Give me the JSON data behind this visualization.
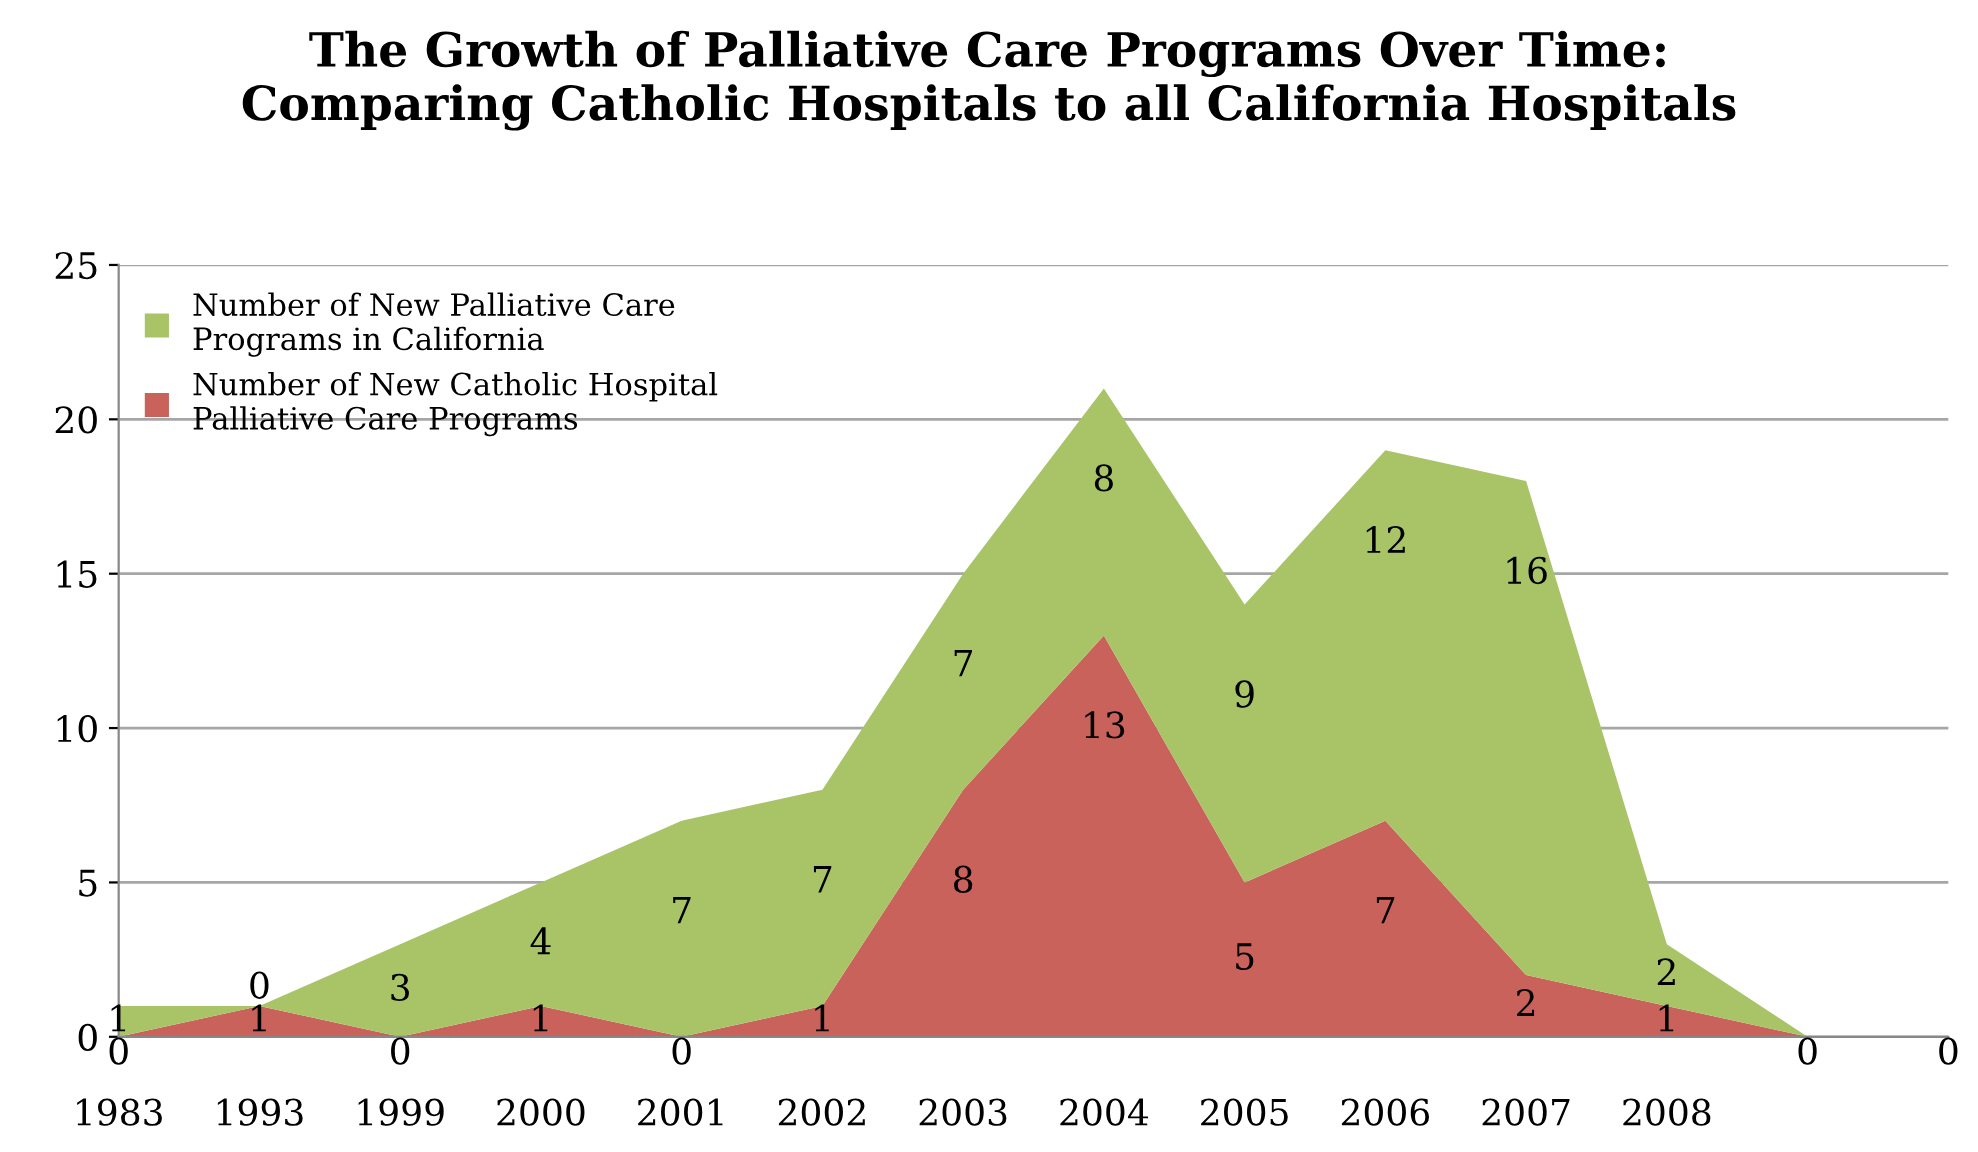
{
  "chart_data": {
    "type": "area",
    "stacked": true,
    "title": "The Growth of Palliative Care Programs Over Time:\nComparing Catholic Hospitals to all California Hospitals",
    "categories": [
      "1983",
      "1993",
      "1999",
      "2000",
      "2001",
      "2002",
      "2003",
      "2004",
      "2005",
      "2006",
      "2007",
      "2008",
      null,
      null
    ],
    "series": [
      {
        "name": "Number of New Catholic Hospital\nPalliative Care Programs",
        "color": "#c9625a",
        "values": [
          0,
          1,
          0,
          1,
          0,
          1,
          8,
          13,
          5,
          7,
          2,
          1,
          0,
          0
        ],
        "value_labels": [
          "0",
          "1",
          "0",
          "1",
          "0",
          "1",
          "8",
          "13",
          "5",
          "7",
          "2",
          "1",
          "0",
          "0"
        ]
      },
      {
        "name": "Number of New Palliative Care\nPrograms in California",
        "color": "#a9c467",
        "values": [
          1,
          0,
          3,
          4,
          7,
          7,
          7,
          8,
          9,
          12,
          16,
          2,
          0,
          0
        ],
        "value_labels": [
          "1",
          "0",
          "3",
          "4",
          "7",
          "7",
          "7",
          "8",
          "9",
          "12",
          "16",
          "2",
          null,
          null
        ]
      }
    ],
    "ylim": [
      0,
      25
    ],
    "yticks": [
      0,
      5,
      10,
      15,
      20,
      25
    ],
    "grid": "y",
    "legend": "top left"
  }
}
